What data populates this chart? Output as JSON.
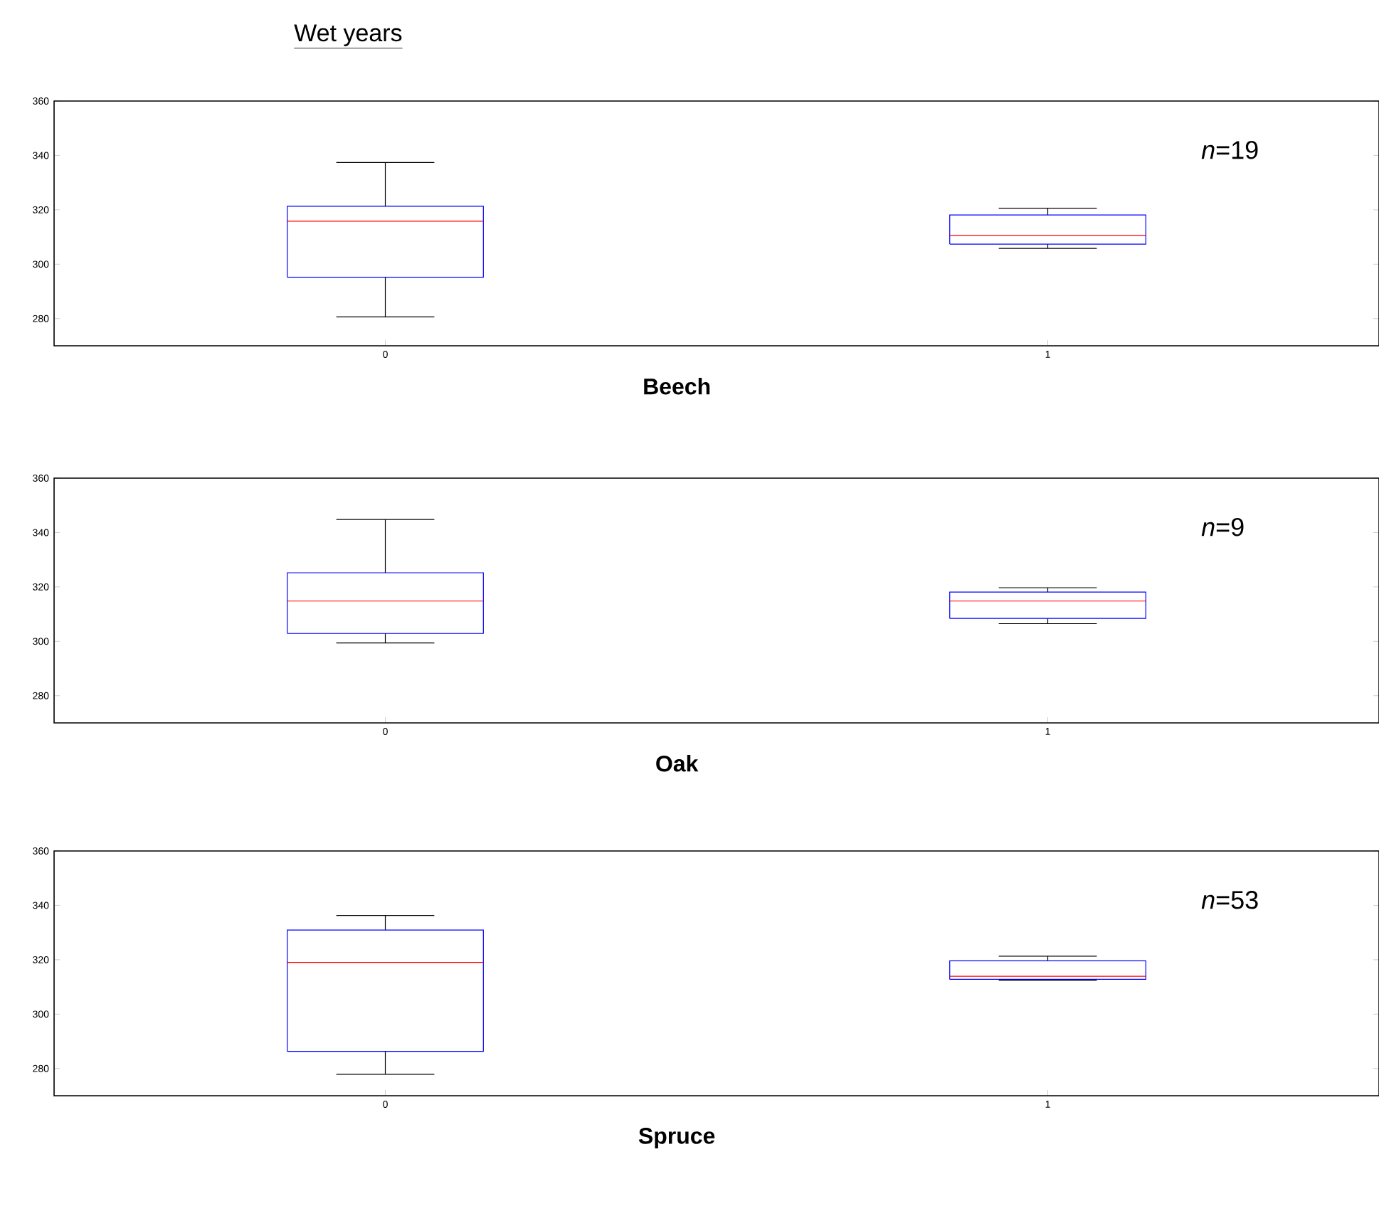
{
  "chart_data": [
    {
      "type": "box",
      "title": "Wet years",
      "categories": [
        "0",
        "1"
      ],
      "xlabel": "Beech",
      "ylim": [
        270,
        360
      ],
      "yticks": [
        280,
        300,
        320,
        340,
        360
      ],
      "annotations": [
        "*n*=19"
      ],
      "boxes": [
        {
          "low": 280.6,
          "q1": 295.2,
          "median": 315.8,
          "q3": 321.3,
          "high": 337.4
        },
        {
          "low": 305.8,
          "q1": 307.4,
          "median": 310.6,
          "q3": 318.1,
          "high": 320.6
        }
      ]
    },
    {
      "type": "box",
      "categories": [
        "0",
        "1"
      ],
      "xlabel": "Oak",
      "ylim": [
        270,
        360
      ],
      "yticks": [
        280,
        300,
        320,
        340,
        360
      ],
      "annotations": [
        "*n*=9"
      ],
      "boxes": [
        {
          "low": 299.4,
          "q1": 302.9,
          "median": 314.8,
          "q3": 325.2,
          "high": 344.8
        },
        {
          "low": 306.5,
          "q1": 308.4,
          "median": 314.8,
          "q3": 318.1,
          "high": 319.7
        }
      ]
    },
    {
      "type": "box",
      "categories": [
        "0",
        "1"
      ],
      "xlabel": "Spruce",
      "ylim": [
        270,
        360
      ],
      "yticks": [
        280,
        300,
        320,
        340,
        360
      ],
      "annotations": [
        "*n*=53"
      ],
      "boxes": [
        {
          "low": 277.9,
          "q1": 286.3,
          "median": 319.0,
          "q3": 330.9,
          "high": 336.3
        },
        {
          "low": 312.5,
          "q1": 312.8,
          "median": 313.9,
          "q3": 319.6,
          "high": 321.3
        }
      ]
    }
  ]
}
